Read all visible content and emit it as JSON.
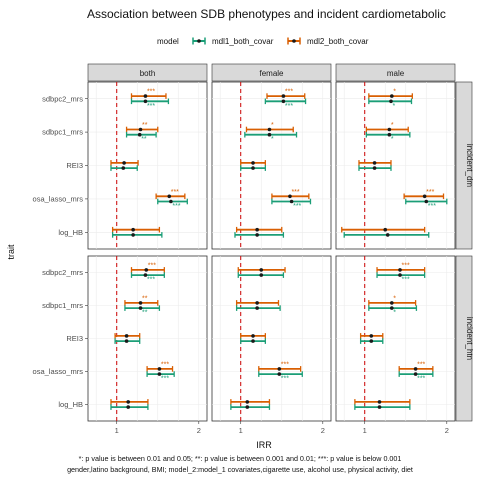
{
  "chart_data": {
    "type": "forest",
    "title": "Association between SDB phenotypes and incident cardiometabolic",
    "xlabel": "IRR",
    "ylabel": "trait",
    "xlim": [
      0.65,
      2.1
    ],
    "x_ticks": [
      1,
      2
    ],
    "reference_line": 1,
    "legend": {
      "title": "model",
      "position": "top",
      "entries": [
        {
          "name": "mdl1_both_covar",
          "color": "#1b9e77"
        },
        {
          "name": "mdl2_both_covar",
          "color": "#d95f02"
        }
      ]
    },
    "columns": [
      "both",
      "female",
      "male"
    ],
    "rows": [
      "incident_dm",
      "incident_htn"
    ],
    "traits": [
      "sdbpc2_mrs",
      "sdbpc1_mrs",
      "REI3",
      "osa_lasso_mrs",
      "log_HB"
    ],
    "panels": [
      {
        "column": "both",
        "row": "incident_dm",
        "estimates": [
          {
            "trait": "sdbpc2_mrs",
            "mdl1": {
              "est": 1.35,
              "lo": 1.18,
              "hi": 1.63,
              "sig": "***"
            },
            "mdl2": {
              "est": 1.35,
              "lo": 1.18,
              "hi": 1.6,
              "sig": "***"
            }
          },
          {
            "trait": "sdbpc1_mrs",
            "mdl1": {
              "est": 1.28,
              "lo": 1.12,
              "hi": 1.48,
              "sig": "**"
            },
            "mdl2": {
              "est": 1.29,
              "lo": 1.12,
              "hi": 1.5,
              "sig": "**"
            }
          },
          {
            "trait": "REI3",
            "mdl1": {
              "est": 1.08,
              "lo": 0.93,
              "hi": 1.25,
              "sig": ""
            },
            "mdl2": {
              "est": 1.09,
              "lo": 0.93,
              "hi": 1.26,
              "sig": ""
            }
          },
          {
            "trait": "osa_lasso_mrs",
            "mdl1": {
              "est": 1.66,
              "lo": 1.5,
              "hi": 1.86,
              "sig": "***"
            },
            "mdl2": {
              "est": 1.64,
              "lo": 1.48,
              "hi": 1.83,
              "sig": "***"
            }
          },
          {
            "trait": "log_HB",
            "mdl1": {
              "est": 1.2,
              "lo": 0.95,
              "hi": 1.55,
              "sig": ""
            },
            "mdl2": {
              "est": 1.2,
              "lo": 0.95,
              "hi": 1.52,
              "sig": ""
            }
          }
        ]
      },
      {
        "column": "female",
        "row": "incident_dm",
        "estimates": [
          {
            "trait": "sdbpc2_mrs",
            "mdl1": {
              "est": 1.52,
              "lo": 1.3,
              "hi": 1.79,
              "sig": "***"
            },
            "mdl2": {
              "est": 1.52,
              "lo": 1.32,
              "hi": 1.78,
              "sig": "***"
            }
          },
          {
            "trait": "sdbpc1_mrs",
            "mdl1": {
              "est": 1.35,
              "lo": 1.05,
              "hi": 1.68,
              "sig": "*"
            },
            "mdl2": {
              "est": 1.35,
              "lo": 1.07,
              "hi": 1.64,
              "sig": "*"
            }
          },
          {
            "trait": "REI3",
            "mdl1": {
              "est": 1.15,
              "lo": 1.0,
              "hi": 1.3,
              "sig": ""
            },
            "mdl2": {
              "est": 1.15,
              "lo": 1.0,
              "hi": 1.3,
              "sig": ""
            }
          },
          {
            "trait": "osa_lasso_mrs",
            "mdl1": {
              "est": 1.62,
              "lo": 1.38,
              "hi": 1.85,
              "sig": "***"
            },
            "mdl2": {
              "est": 1.6,
              "lo": 1.38,
              "hi": 1.83,
              "sig": "***"
            }
          },
          {
            "trait": "log_HB",
            "mdl1": {
              "est": 1.2,
              "lo": 0.93,
              "hi": 1.52,
              "sig": ""
            },
            "mdl2": {
              "est": 1.2,
              "lo": 0.95,
              "hi": 1.5,
              "sig": ""
            }
          }
        ]
      },
      {
        "column": "male",
        "row": "incident_dm",
        "estimates": [
          {
            "trait": "sdbpc2_mrs",
            "mdl1": {
              "est": 1.32,
              "lo": 1.05,
              "hi": 1.57,
              "sig": "*"
            },
            "mdl2": {
              "est": 1.33,
              "lo": 1.05,
              "hi": 1.58,
              "sig": "*"
            }
          },
          {
            "trait": "sdbpc1_mrs",
            "mdl1": {
              "est": 1.3,
              "lo": 1.02,
              "hi": 1.55,
              "sig": "*"
            },
            "mdl2": {
              "est": 1.3,
              "lo": 1.02,
              "hi": 1.53,
              "sig": "*"
            }
          },
          {
            "trait": "REI3",
            "mdl1": {
              "est": 1.12,
              "lo": 0.93,
              "hi": 1.32,
              "sig": ""
            },
            "mdl2": {
              "est": 1.12,
              "lo": 0.93,
              "hi": 1.32,
              "sig": ""
            }
          },
          {
            "trait": "osa_lasso_mrs",
            "mdl1": {
              "est": 1.75,
              "lo": 1.5,
              "hi": 2.0,
              "sig": "***"
            },
            "mdl2": {
              "est": 1.73,
              "lo": 1.48,
              "hi": 1.96,
              "sig": "***"
            }
          },
          {
            "trait": "log_HB",
            "mdl1": {
              "est": 1.28,
              "lo": 0.75,
              "hi": 1.78,
              "sig": ""
            },
            "mdl2": {
              "est": 1.25,
              "lo": 0.72,
              "hi": 1.73,
              "sig": ""
            }
          }
        ]
      },
      {
        "column": "both",
        "row": "incident_htn",
        "estimates": [
          {
            "trait": "sdbpc2_mrs",
            "mdl1": {
              "est": 1.35,
              "lo": 1.18,
              "hi": 1.58,
              "sig": "***"
            },
            "mdl2": {
              "est": 1.36,
              "lo": 1.18,
              "hi": 1.58,
              "sig": "***"
            }
          },
          {
            "trait": "sdbpc1_mrs",
            "mdl1": {
              "est": 1.29,
              "lo": 1.1,
              "hi": 1.52,
              "sig": "**"
            },
            "mdl2": {
              "est": 1.29,
              "lo": 1.1,
              "hi": 1.5,
              "sig": "**"
            }
          },
          {
            "trait": "REI3",
            "mdl1": {
              "est": 1.12,
              "lo": 0.98,
              "hi": 1.28,
              "sig": ""
            },
            "mdl2": {
              "est": 1.12,
              "lo": 0.98,
              "hi": 1.28,
              "sig": ""
            }
          },
          {
            "trait": "osa_lasso_mrs",
            "mdl1": {
              "est": 1.52,
              "lo": 1.37,
              "hi": 1.7,
              "sig": "***"
            },
            "mdl2": {
              "est": 1.52,
              "lo": 1.37,
              "hi": 1.68,
              "sig": "***"
            }
          },
          {
            "trait": "log_HB",
            "mdl1": {
              "est": 1.14,
              "lo": 0.93,
              "hi": 1.38,
              "sig": ""
            },
            "mdl2": {
              "est": 1.14,
              "lo": 0.93,
              "hi": 1.38,
              "sig": ""
            }
          }
        ]
      },
      {
        "column": "female",
        "row": "incident_htn",
        "estimates": [
          {
            "trait": "sdbpc2_mrs",
            "mdl1": {
              "est": 1.25,
              "lo": 0.97,
              "hi": 1.52,
              "sig": ""
            },
            "mdl2": {
              "est": 1.25,
              "lo": 0.97,
              "hi": 1.54,
              "sig": ""
            }
          },
          {
            "trait": "sdbpc1_mrs",
            "mdl1": {
              "est": 1.2,
              "lo": 0.95,
              "hi": 1.48,
              "sig": ""
            },
            "mdl2": {
              "est": 1.2,
              "lo": 0.95,
              "hi": 1.46,
              "sig": ""
            }
          },
          {
            "trait": "REI3",
            "mdl1": {
              "est": 1.15,
              "lo": 1.0,
              "hi": 1.3,
              "sig": ""
            },
            "mdl2": {
              "est": 1.15,
              "lo": 1.0,
              "hi": 1.3,
              "sig": ""
            }
          },
          {
            "trait": "osa_lasso_mrs",
            "mdl1": {
              "est": 1.47,
              "lo": 1.22,
              "hi": 1.75,
              "sig": "***"
            },
            "mdl2": {
              "est": 1.47,
              "lo": 1.22,
              "hi": 1.73,
              "sig": "***"
            }
          },
          {
            "trait": "log_HB",
            "mdl1": {
              "est": 1.08,
              "lo": 0.88,
              "hi": 1.35,
              "sig": ""
            },
            "mdl2": {
              "est": 1.08,
              "lo": 0.88,
              "hi": 1.35,
              "sig": ""
            }
          }
        ]
      },
      {
        "column": "male",
        "row": "incident_htn",
        "estimates": [
          {
            "trait": "sdbpc2_mrs",
            "mdl1": {
              "est": 1.43,
              "lo": 1.15,
              "hi": 1.73,
              "sig": "***"
            },
            "mdl2": {
              "est": 1.43,
              "lo": 1.15,
              "hi": 1.73,
              "sig": "***"
            }
          },
          {
            "trait": "sdbpc1_mrs",
            "mdl1": {
              "est": 1.33,
              "lo": 1.05,
              "hi": 1.63,
              "sig": "*"
            },
            "mdl2": {
              "est": 1.33,
              "lo": 1.05,
              "hi": 1.62,
              "sig": "*"
            }
          },
          {
            "trait": "REI3",
            "mdl1": {
              "est": 1.08,
              "lo": 0.95,
              "hi": 1.22,
              "sig": ""
            },
            "mdl2": {
              "est": 1.08,
              "lo": 0.95,
              "hi": 1.22,
              "sig": ""
            }
          },
          {
            "trait": "osa_lasso_mrs",
            "mdl1": {
              "est": 1.62,
              "lo": 1.42,
              "hi": 1.83,
              "sig": "***"
            },
            "mdl2": {
              "est": 1.62,
              "lo": 1.42,
              "hi": 1.83,
              "sig": "***"
            }
          },
          {
            "trait": "log_HB",
            "mdl1": {
              "est": 1.18,
              "lo": 0.88,
              "hi": 1.55,
              "sig": ""
            },
            "mdl2": {
              "est": 1.18,
              "lo": 0.88,
              "hi": 1.55,
              "sig": ""
            }
          }
        ]
      }
    ],
    "footnotes": [
      "*: p value is between 0.01 and 0.05; **: p value is between 0.001 and 0.01; ***: p value is below 0.001",
      "gender,latino background, BMI; model_2:model_1 covariates,cigarette use, alcohol use, physical activity, diet"
    ]
  }
}
